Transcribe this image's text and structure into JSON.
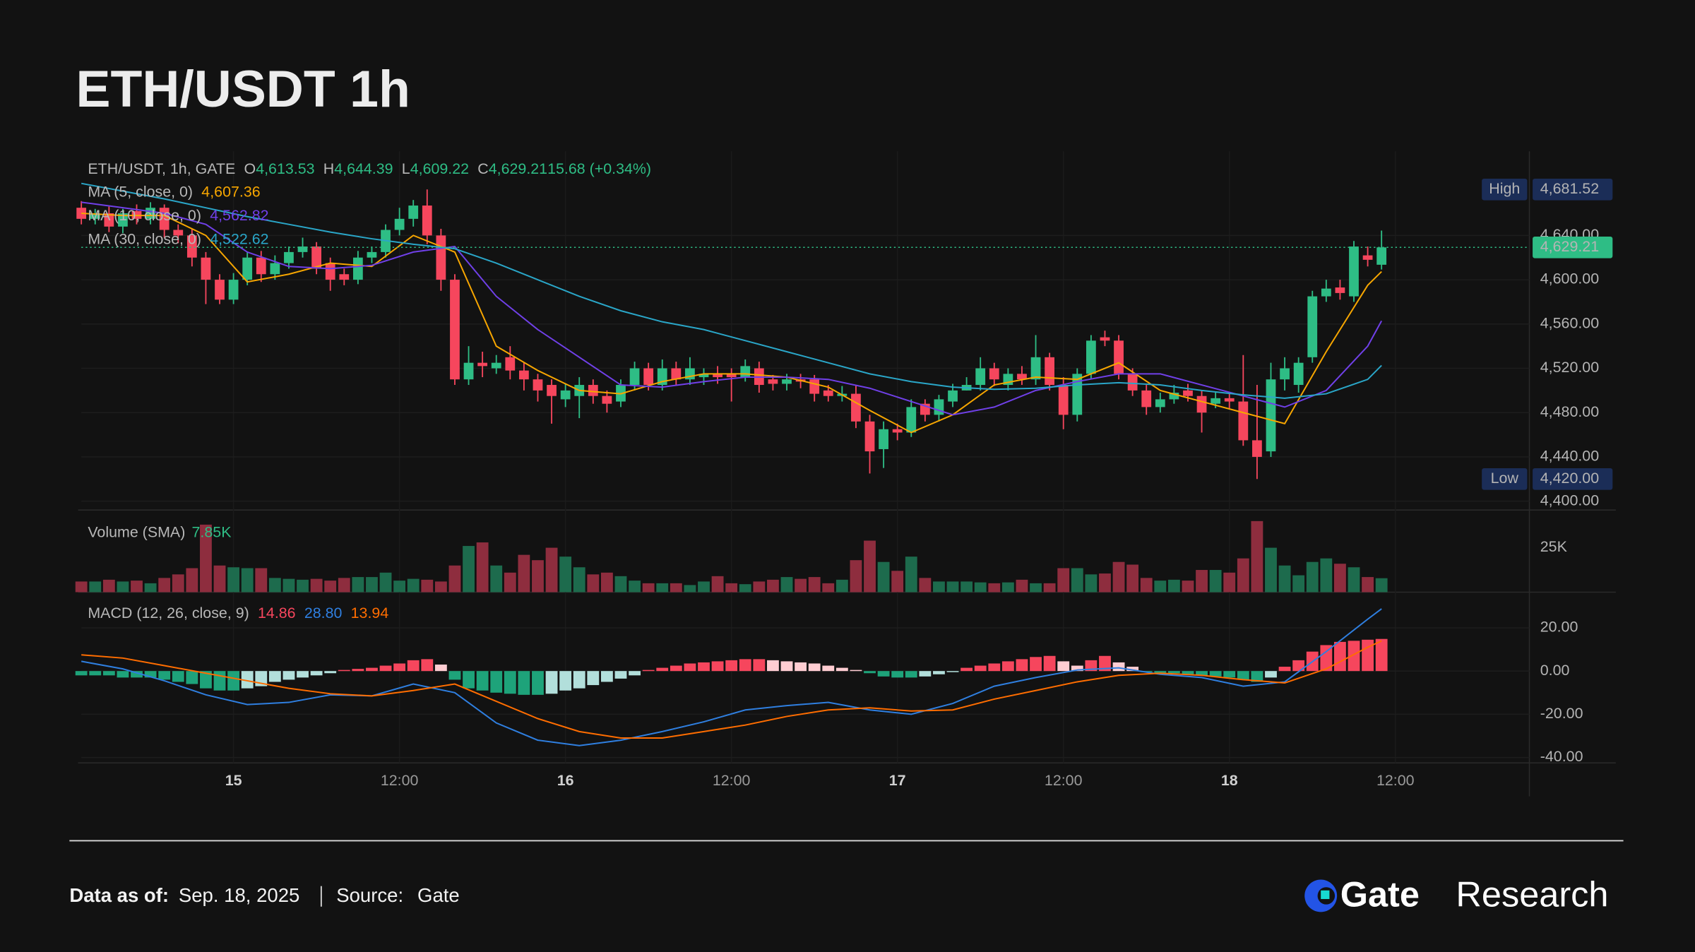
{
  "header": {
    "title": "ETH/USDT 1h"
  },
  "footer": {
    "date_label": "Data as of:",
    "date": "Sep. 18, 2025",
    "source_label": "Source:",
    "source": "Gate",
    "logo_brand": "Gate",
    "logo_suffix": "Research"
  },
  "chart_data": [
    {
      "type": "candlestick",
      "title": "ETH/USDT, 1h, GATE",
      "ohlc_legend": [
        {
          "key": "O",
          "value": "4,613.53"
        },
        {
          "key": "H",
          "value": "4,644.39"
        },
        {
          "key": "L",
          "value": "4,609.22"
        },
        {
          "key": "C",
          "value": "4,629.21"
        },
        {
          "key": "",
          "value": "15.68 (+0.34%)"
        }
      ],
      "colors": {
        "up": "#2ebd85",
        "down": "#f6465d"
      },
      "grid": true,
      "ylim": [
        4392,
        4716
      ],
      "yticks": [
        {
          "value": 4400,
          "label": "4,400.00"
        },
        {
          "value": 4440,
          "label": "4,440.00"
        },
        {
          "value": 4480,
          "label": "4,480.00"
        },
        {
          "value": 4520,
          "label": "4,520.00"
        },
        {
          "value": 4560,
          "label": "4,560.00"
        },
        {
          "value": 4600,
          "label": "4,600.00"
        },
        {
          "value": 4640,
          "label": "4,640.00"
        }
      ],
      "categories": [
        null,
        null,
        null,
        null,
        null,
        null,
        null,
        null,
        null,
        null,
        null,
        "15",
        null,
        null,
        null,
        null,
        null,
        null,
        null,
        null,
        null,
        null,
        null,
        "12:00",
        null,
        null,
        null,
        null,
        null,
        null,
        null,
        null,
        null,
        null,
        null,
        "16",
        null,
        null,
        null,
        null,
        null,
        null,
        null,
        null,
        null,
        null,
        null,
        "12:00",
        null,
        null,
        null,
        null,
        null,
        null,
        null,
        null,
        null,
        null,
        null,
        "17",
        null,
        null,
        null,
        null,
        null,
        null,
        null,
        null,
        null,
        null,
        null,
        "12:00",
        null,
        null,
        null,
        null,
        null,
        null,
        null,
        null,
        null,
        null,
        null,
        "18",
        null,
        null,
        null,
        null,
        null,
        null,
        null,
        null,
        null,
        null,
        null,
        "12:00"
      ],
      "open": [
        4665,
        4655,
        4660,
        4648,
        4662,
        4655,
        4665,
        4645,
        4640,
        4620,
        4600,
        4582,
        4600,
        4620,
        4605,
        4615,
        4625,
        4630,
        4615,
        4605,
        4600,
        4620,
        4625,
        4645,
        4655,
        4667,
        4640,
        4600,
        4510,
        4525,
        4520,
        4530,
        4518,
        4510,
        4505,
        4492,
        4495,
        4505,
        4495,
        4490,
        4505,
        4520,
        4505,
        4520,
        4510,
        4512,
        4515,
        4515,
        4512,
        4520,
        4510,
        4506,
        4510,
        4510,
        4500,
        4495,
        4497,
        4472,
        4447,
        4465,
        4462,
        4488,
        4478,
        4490,
        4500,
        4505,
        4520,
        4505,
        4515,
        4510,
        4530,
        4505,
        4478,
        4515,
        4548,
        4545,
        4515,
        4500,
        4485,
        4492,
        4500,
        4495,
        4488,
        4493,
        4490,
        4455,
        4445,
        4510,
        4505,
        4530,
        4585,
        4593,
        4585,
        4622,
        4613.53,
        null
      ],
      "high": [
        4671,
        4664,
        4666,
        4664,
        4668,
        4670,
        4668,
        4650,
        4646,
        4625,
        4605,
        4606,
        4625,
        4626,
        4622,
        4630,
        4638,
        4634,
        4620,
        4610,
        4626,
        4630,
        4650,
        4665,
        4672,
        4681.52,
        4646,
        4605,
        4540,
        4535,
        4532,
        4540,
        4525,
        4515,
        4510,
        4506,
        4512,
        4510,
        4500,
        4510,
        4526,
        4525,
        4528,
        4526,
        4530,
        4520,
        4522,
        4520,
        4528,
        4526,
        4514,
        4515,
        4515,
        4514,
        4505,
        4504,
        4505,
        4478,
        4472,
        4470,
        4492,
        4492,
        4496,
        4506,
        4512,
        4530,
        4525,
        4520,
        4522,
        4550,
        4534,
        4512,
        4520,
        4550,
        4554,
        4550,
        4520,
        4505,
        4498,
        4505,
        4506,
        4500,
        4498,
        4498,
        4532,
        4505,
        4525,
        4530,
        4530,
        4590,
        4600,
        4600,
        4635,
        4630,
        4644.39,
        null
      ],
      "low": [
        4650,
        4650,
        4643,
        4642,
        4650,
        4650,
        4638,
        4633,
        4612,
        4578,
        4578,
        4578,
        4595,
        4598,
        4600,
        4610,
        4620,
        4605,
        4590,
        4595,
        4596,
        4615,
        4620,
        4640,
        4648,
        4632,
        4590,
        4505,
        4505,
        4512,
        4515,
        4510,
        4500,
        4490,
        4470,
        4485,
        4475,
        4488,
        4480,
        4485,
        4500,
        4500,
        4500,
        4505,
        4505,
        4505,
        4506,
        4490,
        4508,
        4498,
        4500,
        4500,
        4502,
        4490,
        4490,
        4490,
        4466,
        4425,
        4430,
        4455,
        4458,
        4472,
        4472,
        4485,
        4500,
        4500,
        4504,
        4500,
        4505,
        4505,
        4500,
        4465,
        4472,
        4510,
        4540,
        4510,
        4495,
        4478,
        4480,
        4488,
        4490,
        4462,
        4484,
        4484,
        4450,
        4420,
        4440,
        4500,
        4498,
        4525,
        4580,
        4582,
        4580,
        4612,
        4609.22,
        null
      ],
      "close": [
        4655,
        4660,
        4648,
        4660,
        4655,
        4665,
        4645,
        4640,
        4620,
        4600,
        4582,
        4600,
        4620,
        4605,
        4615,
        4625,
        4630,
        4610,
        4600,
        4600,
        4620,
        4625,
        4645,
        4655,
        4667,
        4640,
        4600,
        4510,
        4525,
        4522,
        4525,
        4518,
        4510,
        4500,
        4495,
        4500,
        4505,
        4495,
        4488,
        4505,
        4520,
        4505,
        4520,
        4510,
        4520,
        4515,
        4512,
        4512,
        4522,
        4505,
        4506,
        4510,
        4508,
        4497,
        4495,
        4497,
        4472,
        4445,
        4465,
        4462,
        4485,
        4478,
        4492,
        4500,
        4505,
        4520,
        4510,
        4515,
        4510,
        4530,
        4505,
        4478,
        4515,
        4545,
        4545,
        4515,
        4500,
        4485,
        4492,
        4498,
        4495,
        4480,
        4493,
        4490,
        4455,
        4440,
        4510,
        4520,
        4525,
        4585,
        4592,
        4588,
        4630,
        4618,
        4629.21,
        null
      ],
      "series": [
        {
          "name": "MA (5, close, 0)",
          "color": "#f7a600",
          "value_label": "4,607.36",
          "x": [
            0,
            3,
            6,
            9,
            12,
            15,
            18,
            21,
            24,
            27,
            30,
            33,
            36,
            39,
            42,
            45,
            48,
            51,
            54,
            57,
            60,
            63,
            66,
            69,
            72,
            75,
            78,
            81,
            84,
            87,
            90,
            93,
            94
          ],
          "values": [
            4660,
            4658,
            4658,
            4640,
            4598,
            4605,
            4615,
            4612,
            4640,
            4625,
            4540,
            4518,
            4500,
            4497,
            4508,
            4515,
            4515,
            4512,
            4503,
            4482,
            4462,
            4478,
            4505,
            4512,
            4510,
            4525,
            4500,
            4490,
            4480,
            4470,
            4535,
            4595,
            4607.36
          ]
        },
        {
          "name": "MA (10, close, 0)",
          "color": "#7040e8",
          "value_label": "4,562.82",
          "x": [
            0,
            3,
            6,
            9,
            12,
            15,
            18,
            21,
            24,
            27,
            30,
            33,
            36,
            39,
            42,
            45,
            48,
            51,
            54,
            57,
            60,
            63,
            66,
            69,
            72,
            75,
            78,
            81,
            84,
            87,
            90,
            93,
            94
          ],
          "values": [
            4670,
            4665,
            4660,
            4650,
            4625,
            4612,
            4610,
            4613,
            4625,
            4630,
            4585,
            4555,
            4530,
            4505,
            4503,
            4508,
            4512,
            4512,
            4510,
            4502,
            4490,
            4478,
            4485,
            4500,
            4508,
            4515,
            4515,
            4505,
            4495,
            4485,
            4500,
            4540,
            4562.82
          ]
        },
        {
          "name": "MA (30, close, 0)",
          "color": "#2aa6c8",
          "value_label": "4,522.62",
          "x": [
            0,
            3,
            6,
            9,
            12,
            15,
            18,
            21,
            24,
            27,
            30,
            33,
            36,
            39,
            42,
            45,
            48,
            51,
            54,
            57,
            60,
            63,
            66,
            69,
            72,
            75,
            78,
            81,
            84,
            87,
            90,
            93,
            94
          ],
          "values": [
            4687,
            4680,
            4673,
            4665,
            4657,
            4650,
            4643,
            4637,
            4632,
            4628,
            4615,
            4600,
            4585,
            4572,
            4562,
            4555,
            4545,
            4535,
            4525,
            4515,
            4508,
            4503,
            4501,
            4502,
            4505,
            4507,
            4505,
            4500,
            4496,
            4493,
            4497,
            4510,
            4522.62
          ]
        }
      ],
      "markers": [
        {
          "label": "High",
          "value": 4681.52,
          "value_label": "4,681.52"
        },
        {
          "label": "Low",
          "value": 4420,
          "value_label": "4,420.00"
        }
      ],
      "last": {
        "value": 4629.21,
        "label": "4,629.21"
      }
    },
    {
      "type": "bar",
      "title": "Volume (SMA)",
      "title_value": "7.85K",
      "colors": {
        "up": "#1d6b4d",
        "down": "#8e2d3e"
      },
      "grid": false,
      "ylim": [
        0,
        45000
      ],
      "yticks": [
        {
          "value": 25000,
          "label": "25K"
        }
      ],
      "values": [
        6000,
        6000,
        7000,
        6000,
        6500,
        5000,
        8000,
        10000,
        13500,
        38000,
        15000,
        14000,
        13500,
        13500,
        8000,
        7500,
        7000,
        7500,
        6500,
        8000,
        8500,
        8500,
        11000,
        6500,
        7500,
        7000,
        6000,
        15000,
        26000,
        28000,
        15000,
        11000,
        21000,
        18000,
        25000,
        20000,
        14000,
        10000,
        11000,
        9000,
        6500,
        5000,
        5000,
        5000,
        4000,
        6000,
        9000,
        5000,
        4500,
        6000,
        7000,
        8500,
        7500,
        8500,
        5000,
        7000,
        18000,
        29000,
        17000,
        12000,
        20000,
        8000,
        6000,
        6000,
        6000,
        5500,
        5000,
        5500,
        7000,
        5000,
        5000,
        13500,
        13500,
        10000,
        10500,
        17000,
        15500,
        8000,
        6500,
        7000,
        6500,
        12500,
        12500,
        11000,
        19000,
        40000,
        25000,
        15000,
        9500,
        17000,
        19000,
        16000,
        14000,
        8500,
        7850,
        null
      ]
    },
    {
      "type": "macd",
      "title": "MACD (12, 26, close, 9)",
      "grid": true,
      "ylim": [
        -42.5,
        35.5
      ],
      "yticks": [
        {
          "value": 20,
          "label": "20.00"
        },
        {
          "value": 0,
          "label": "0.00"
        },
        {
          "value": -20,
          "label": "-20.00"
        },
        {
          "value": -40,
          "label": "-40.00"
        }
      ],
      "histogram": {
        "value_label": "14.86",
        "colors": [
          "#f6465d",
          "#ffcdd2",
          "#1ea37a",
          "#b2dfdb"
        ],
        "values": [
          -2,
          -2,
          -2,
          -3,
          -3,
          -3,
          -4,
          -5,
          -6,
          -8,
          -9,
          -9,
          -8,
          -7,
          -5,
          -4,
          -3,
          -2,
          -1,
          0.5,
          1,
          1.5,
          2.5,
          3.5,
          5,
          5.5,
          3,
          -4,
          -8,
          -9,
          -10,
          -10.5,
          -11,
          -11,
          -10.5,
          -9,
          -8,
          -6.5,
          -5,
          -3.5,
          -2,
          0.5,
          1.5,
          2.5,
          3.5,
          4,
          4.5,
          5,
          5.5,
          5.5,
          5,
          4.5,
          4,
          3.5,
          2.5,
          1.5,
          0.5,
          -1,
          -2.5,
          -3,
          -3,
          -2.5,
          -1.5,
          -0.5,
          1.5,
          2.5,
          3.5,
          4.5,
          5.5,
          6.5,
          7,
          4.5,
          2.5,
          5,
          7,
          4,
          2,
          -0.5,
          -1,
          -1,
          -1.5,
          -2,
          -2.5,
          -3,
          -4,
          -5,
          -3,
          2,
          5,
          9,
          12,
          13.5,
          14,
          14.5,
          14.86,
          null
        ]
      },
      "series": [
        {
          "color": "#2f7fe0",
          "value_label": "28.80",
          "x": [
            0,
            3,
            6,
            9,
            12,
            15,
            18,
            21,
            24,
            27,
            30,
            33,
            36,
            39,
            42,
            45,
            48,
            51,
            54,
            57,
            60,
            63,
            66,
            69,
            72,
            75,
            78,
            81,
            84,
            87,
            90,
            93,
            94
          ],
          "values": [
            4.5,
            1,
            -4.5,
            -11,
            -15.5,
            -14.5,
            -11,
            -11.5,
            -6,
            -10,
            -24,
            -32,
            -34.5,
            -32,
            -28,
            -23.5,
            -18,
            -16,
            -14.5,
            -18,
            -20,
            -15,
            -7,
            -3,
            0.5,
            1.5,
            -1.5,
            -3,
            -7,
            -5,
            9,
            24,
            28.8
          ]
        },
        {
          "color": "#ff6d00",
          "value_label": "13.94",
          "x": [
            0,
            3,
            6,
            9,
            12,
            15,
            18,
            21,
            24,
            27,
            30,
            33,
            36,
            39,
            42,
            45,
            48,
            51,
            54,
            57,
            60,
            63,
            66,
            69,
            72,
            75,
            78,
            81,
            84,
            87,
            90,
            93,
            94
          ],
          "values": [
            7.5,
            6,
            2.5,
            -1,
            -4.5,
            -8,
            -10.5,
            -11.5,
            -9,
            -6,
            -14,
            -22,
            -28,
            -31,
            -31,
            -28,
            -25,
            -21,
            -18,
            -17,
            -18.5,
            -18,
            -13,
            -9,
            -5,
            -2,
            -1,
            -2,
            -4,
            -5.5,
            1,
            11,
            13.94
          ]
        }
      ]
    }
  ]
}
